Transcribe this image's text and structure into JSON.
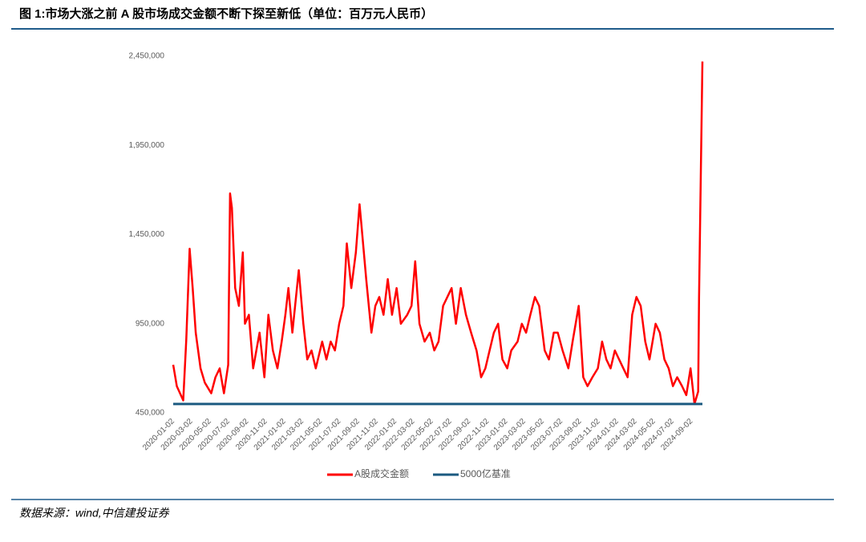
{
  "chart_data": {
    "type": "line",
    "title": "图 1:市场大涨之前 A 股市场成交金额不断下探至新低（单位：百万元人民币）",
    "source": "数据来源：wind,中信建投证券",
    "x": [
      "2020-01-02",
      "2020-01-14",
      "2020-02-04",
      "2020-02-14",
      "2020-02-25",
      "2020-03-06",
      "2020-03-16",
      "2020-04-01",
      "2020-04-15",
      "2020-05-06",
      "2020-05-20",
      "2020-06-03",
      "2020-06-17",
      "2020-07-01",
      "2020-07-07",
      "2020-07-13",
      "2020-07-24",
      "2020-08-05",
      "2020-08-18",
      "2020-08-25",
      "2020-09-07",
      "2020-09-21",
      "2020-10-12",
      "2020-10-28",
      "2020-11-10",
      "2020-11-25",
      "2020-12-10",
      "2020-12-24",
      "2021-01-05",
      "2021-01-15",
      "2021-01-28",
      "2021-02-18",
      "2021-03-05",
      "2021-03-18",
      "2021-04-01",
      "2021-04-15",
      "2021-05-06",
      "2021-05-20",
      "2021-06-03",
      "2021-06-17",
      "2021-07-01",
      "2021-07-15",
      "2021-07-26",
      "2021-08-10",
      "2021-08-25",
      "2021-09-06",
      "2021-09-15",
      "2021-09-28",
      "2021-10-15",
      "2021-10-28",
      "2021-11-10",
      "2021-11-24",
      "2021-12-08",
      "2021-12-22",
      "2022-01-06",
      "2022-01-20",
      "2022-02-10",
      "2022-02-24",
      "2022-03-08",
      "2022-03-22",
      "2022-04-08",
      "2022-04-25",
      "2022-05-10",
      "2022-05-24",
      "2022-06-08",
      "2022-06-22",
      "2022-07-06",
      "2022-07-20",
      "2022-08-05",
      "2022-08-22",
      "2022-09-08",
      "2022-09-26",
      "2022-10-11",
      "2022-10-25",
      "2022-11-08",
      "2022-11-22",
      "2022-12-06",
      "2022-12-20",
      "2023-01-05",
      "2023-01-18",
      "2023-02-08",
      "2023-02-22",
      "2023-03-08",
      "2023-03-22",
      "2023-04-06",
      "2023-04-20",
      "2023-05-08",
      "2023-05-22",
      "2023-06-07",
      "2023-06-20",
      "2023-07-06",
      "2023-07-25",
      "2023-08-08",
      "2023-08-28",
      "2023-09-12",
      "2023-09-26",
      "2023-10-12",
      "2023-10-30",
      "2023-11-13",
      "2023-11-27",
      "2023-12-11",
      "2023-12-25",
      "2024-01-08",
      "2024-01-22",
      "2024-02-05",
      "2024-02-20",
      "2024-03-05",
      "2024-03-19",
      "2024-04-03",
      "2024-04-17",
      "2024-05-07",
      "2024-05-21",
      "2024-06-05",
      "2024-06-19",
      "2024-07-03",
      "2024-07-17",
      "2024-08-02",
      "2024-08-16",
      "2024-08-30",
      "2024-09-12",
      "2024-09-24",
      "2024-09-27",
      "2024-10-08"
    ],
    "series": [
      {
        "name": "A股成交金额",
        "color": "#ff0000",
        "values": [
          720000,
          600000,
          520000,
          860000,
          1370000,
          1150000,
          900000,
          700000,
          620000,
          560000,
          650000,
          700000,
          560000,
          720000,
          1680000,
          1600000,
          1150000,
          1050000,
          1350000,
          950000,
          1000000,
          700000,
          900000,
          650000,
          1000000,
          800000,
          700000,
          850000,
          1000000,
          1150000,
          900000,
          1250000,
          950000,
          750000,
          800000,
          700000,
          850000,
          750000,
          850000,
          800000,
          950000,
          1050000,
          1400000,
          1150000,
          1350000,
          1620000,
          1450000,
          1200000,
          900000,
          1050000,
          1100000,
          1000000,
          1200000,
          1000000,
          1150000,
          950000,
          1000000,
          1050000,
          1300000,
          950000,
          850000,
          900000,
          800000,
          850000,
          1050000,
          1100000,
          1150000,
          950000,
          1150000,
          1000000,
          900000,
          800000,
          650000,
          700000,
          800000,
          900000,
          950000,
          750000,
          700000,
          800000,
          850000,
          950000,
          900000,
          1000000,
          1100000,
          1050000,
          800000,
          750000,
          900000,
          900000,
          800000,
          700000,
          850000,
          1050000,
          650000,
          600000,
          650000,
          700000,
          850000,
          750000,
          700000,
          800000,
          750000,
          700000,
          650000,
          1000000,
          1100000,
          1050000,
          850000,
          750000,
          950000,
          900000,
          750000,
          700000,
          600000,
          650000,
          600000,
          550000,
          700000,
          500000,
          570000,
          1100000,
          2420000
        ]
      },
      {
        "name": "5000亿基准",
        "color": "#1b5a80",
        "value": 500000
      }
    ],
    "xlim": [
      "2020-01-02",
      "2024-10-08"
    ],
    "xticks": [
      "2020-01-02",
      "2020-03-02",
      "2020-05-02",
      "2020-07-02",
      "2020-09-02",
      "2020-11-02",
      "2021-01-02",
      "2021-03-02",
      "2021-05-02",
      "2021-07-02",
      "2021-09-02",
      "2021-11-02",
      "2022-01-02",
      "2022-03-02",
      "2022-05-02",
      "2022-07-02",
      "2022-09-02",
      "2022-11-02",
      "2023-01-02",
      "2023-03-02",
      "2023-05-02",
      "2023-07-02",
      "2023-09-02",
      "2023-11-02",
      "2024-01-02",
      "2024-03-02",
      "2024-05-02",
      "2024-07-02",
      "2024-09-02"
    ],
    "ylim": [
      450000,
      2450000
    ],
    "yticks": [
      {
        "value": 450000,
        "label": "450,000"
      },
      {
        "value": 950000,
        "label": "950,000"
      },
      {
        "value": 1450000,
        "label": "1,450,000"
      },
      {
        "value": 1950000,
        "label": "1,950,000"
      },
      {
        "value": 2450000,
        "label": "2,450,000"
      }
    ],
    "grid": false,
    "legend": "bottom"
  }
}
